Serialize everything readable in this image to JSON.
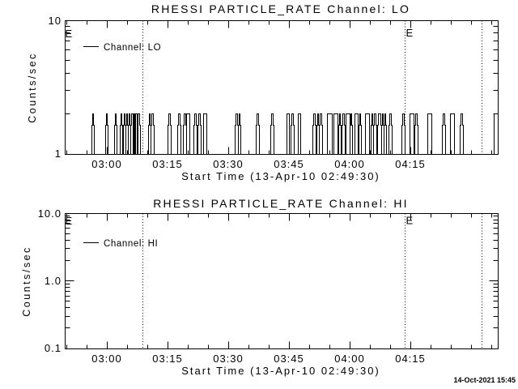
{
  "window": {
    "background": "#ffffff",
    "foreground": "#000000",
    "timestamp": "14-Oct-2021 15:45"
  },
  "chart_data": [
    {
      "type": "line",
      "title": "RHESSI PARTICLE_RATE Channel: LO",
      "ylabel": "Counts/sec",
      "xlabel": "Start Time (13-Apr-10 02:49:30)",
      "yscale": "log",
      "ylim": [
        1,
        10
      ],
      "xlim_minutes_from_start": [
        0,
        107.1
      ],
      "start_time": "02:49:30",
      "grid": false,
      "legend_label": "Channel: LO",
      "legend_position": "top-left-inside",
      "yticks": [
        {
          "label": "10",
          "value": 10
        },
        {
          "label": "1",
          "value": 1
        }
      ],
      "xticks": [
        {
          "label": "03:00",
          "t_min": 10.5
        },
        {
          "label": "03:15",
          "t_min": 25.5
        },
        {
          "label": "03:30",
          "t_min": 40.5
        },
        {
          "label": "03:45",
          "t_min": 55.5
        },
        {
          "label": "04:00",
          "t_min": 70.5
        },
        {
          "label": "04:15",
          "t_min": 85.5
        }
      ],
      "xticks_minor_minutes": [
        0.5,
        5.5,
        15.5,
        20.5,
        30.5,
        35.5,
        45.5,
        50.5,
        60.5,
        65.5,
        75.5,
        80.5,
        90.5,
        95.5,
        100.5,
        105.5
      ],
      "event_flags": [
        {
          "label": "E",
          "t_min": 0.4
        },
        {
          "label": "E",
          "t_min": 84.4
        }
      ],
      "dotted_lines_minutes": [
        19.4,
        84.1,
        103.1
      ],
      "series": [
        {
          "name": "Channel: LO",
          "baseline": 1,
          "spike_value": 2,
          "shoulder_value": 1.65,
          "spikes_minutes": [
            [
              7.1,
              0.35
            ],
            [
              10.5,
              0.35
            ],
            [
              12.7,
              0.35
            ],
            [
              14.1,
              0.35
            ],
            [
              14.9,
              0.3
            ],
            [
              15.5,
              0.3
            ],
            [
              16.1,
              0.3
            ],
            [
              16.8,
              0.3
            ],
            [
              17.3,
              0.3
            ],
            [
              17.8,
              0.3
            ],
            [
              18.4,
              0.3
            ],
            [
              21.1,
              0.35
            ],
            [
              21.8,
              0.35
            ],
            [
              26.0,
              0.4
            ],
            [
              28.4,
              0.35
            ],
            [
              29.8,
              0.35
            ],
            [
              30.6,
              0.7
            ],
            [
              32.4,
              0.35
            ],
            [
              33.4,
              0.35
            ],
            [
              34.7,
              0.8
            ],
            [
              42.6,
              0.35
            ],
            [
              43.3,
              0.35
            ],
            [
              47.8,
              0.4
            ],
            [
              51.4,
              0.35
            ],
            [
              55.3,
              0.7
            ],
            [
              56.4,
              0.35
            ],
            [
              58.1,
              0.7
            ],
            [
              61.8,
              0.35
            ],
            [
              62.7,
              0.35
            ],
            [
              63.4,
              0.35
            ],
            [
              65.5,
              1.2
            ],
            [
              67.1,
              1.1
            ],
            [
              68.1,
              0.35
            ],
            [
              69.0,
              0.35
            ],
            [
              70.1,
              1.0
            ],
            [
              70.9,
              0.35
            ],
            [
              72.1,
              0.8
            ],
            [
              73.1,
              0.35
            ],
            [
              74.9,
              1.0
            ],
            [
              76.1,
              0.35
            ],
            [
              76.8,
              0.35
            ],
            [
              77.9,
              0.5
            ],
            [
              78.7,
              0.35
            ],
            [
              79.3,
              0.35
            ],
            [
              80.6,
              0.35
            ],
            [
              83.8,
              0.35
            ],
            [
              85.9,
              1.0
            ],
            [
              87.0,
              0.35
            ],
            [
              90.2,
              1.0
            ],
            [
              93.8,
              0.4
            ],
            [
              95.9,
              1.0
            ],
            [
              98.2,
              0.4
            ],
            [
              106.8,
              1.4
            ]
          ]
        }
      ]
    },
    {
      "type": "line",
      "title": "RHESSI PARTICLE_RATE Channel: HI",
      "ylabel": "Counts/sec",
      "xlabel": "Start Time (13-Apr-10 02:49:30)",
      "yscale": "log",
      "ylim": [
        0.1,
        10
      ],
      "xlim_minutes_from_start": [
        0,
        107.1
      ],
      "start_time": "02:49:30",
      "grid": false,
      "legend_label": "Channel: HI",
      "legend_position": "top-left-inside",
      "yticks": [
        {
          "label": "10.0",
          "value": 10
        },
        {
          "label": "1.0",
          "value": 1
        },
        {
          "label": "0.1",
          "value": 0.1
        }
      ],
      "xticks": [
        {
          "label": "03:00",
          "t_min": 10.5
        },
        {
          "label": "03:15",
          "t_min": 25.5
        },
        {
          "label": "03:30",
          "t_min": 40.5
        },
        {
          "label": "03:45",
          "t_min": 55.5
        },
        {
          "label": "04:00",
          "t_min": 70.5
        },
        {
          "label": "04:15",
          "t_min": 85.5
        }
      ],
      "xticks_minor_minutes": [
        0.5,
        5.5,
        15.5,
        20.5,
        30.5,
        35.5,
        45.5,
        50.5,
        60.5,
        65.5,
        75.5,
        80.5,
        90.5,
        95.5,
        100.5,
        105.5
      ],
      "event_flags": [
        {
          "label": "E",
          "t_min": 0.4
        },
        {
          "label": "E",
          "t_min": 84.4
        }
      ],
      "dotted_lines_minutes": [
        19.4,
        84.1,
        103.1
      ],
      "series": [
        {
          "name": "Channel: HI",
          "baseline": null,
          "spike_value": null,
          "shoulder_value": null,
          "spikes_minutes": []
        }
      ]
    }
  ]
}
